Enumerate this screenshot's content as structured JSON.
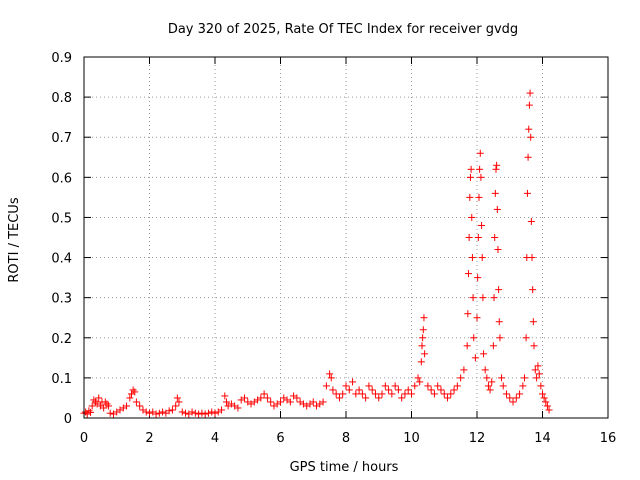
{
  "chart_data": {
    "type": "scatter",
    "title": "Day 320 of 2025, Rate Of TEC Index for receiver gvdg",
    "xlabel": "GPS time / hours",
    "ylabel": "ROTI / TECUs",
    "xlim": [
      0,
      16
    ],
    "ylim": [
      0,
      0.9
    ],
    "xticks": [
      "0",
      "2",
      "4",
      "6",
      "8",
      "10",
      "12",
      "14",
      "16"
    ],
    "yticks": [
      "0",
      "0.1",
      "0.2",
      "0.3",
      "0.4",
      "0.5",
      "0.6",
      "0.7",
      "0.8",
      "0.9"
    ],
    "grid": true,
    "marker": "+",
    "color": "#ff0000",
    "series": [
      {
        "points": [
          [
            0.0,
            0.012
          ],
          [
            0.05,
            0.015
          ],
          [
            0.1,
            0.01
          ],
          [
            0.15,
            0.018
          ],
          [
            0.2,
            0.014
          ],
          [
            0.25,
            0.03
          ],
          [
            0.3,
            0.045
          ],
          [
            0.35,
            0.04
          ],
          [
            0.4,
            0.035
          ],
          [
            0.45,
            0.05
          ],
          [
            0.5,
            0.03
          ],
          [
            0.55,
            0.04
          ],
          [
            0.6,
            0.025
          ],
          [
            0.65,
            0.04
          ],
          [
            0.7,
            0.035
          ],
          [
            0.75,
            0.03
          ],
          [
            0.8,
            0.012
          ],
          [
            0.9,
            0.01
          ],
          [
            1.0,
            0.015
          ],
          [
            1.1,
            0.02
          ],
          [
            1.2,
            0.025
          ],
          [
            1.3,
            0.03
          ],
          [
            1.4,
            0.05
          ],
          [
            1.45,
            0.06
          ],
          [
            1.5,
            0.07
          ],
          [
            1.55,
            0.065
          ],
          [
            1.6,
            0.04
          ],
          [
            1.7,
            0.03
          ],
          [
            1.8,
            0.02
          ],
          [
            1.9,
            0.015
          ],
          [
            2.0,
            0.012
          ],
          [
            2.1,
            0.015
          ],
          [
            2.2,
            0.01
          ],
          [
            2.3,
            0.012
          ],
          [
            2.4,
            0.015
          ],
          [
            2.5,
            0.012
          ],
          [
            2.6,
            0.018
          ],
          [
            2.7,
            0.02
          ],
          [
            2.8,
            0.03
          ],
          [
            2.85,
            0.05
          ],
          [
            2.9,
            0.04
          ],
          [
            3.0,
            0.015
          ],
          [
            3.1,
            0.012
          ],
          [
            3.2,
            0.01
          ],
          [
            3.3,
            0.015
          ],
          [
            3.4,
            0.012
          ],
          [
            3.5,
            0.01
          ],
          [
            3.6,
            0.012
          ],
          [
            3.7,
            0.01
          ],
          [
            3.8,
            0.012
          ],
          [
            3.9,
            0.015
          ],
          [
            4.0,
            0.012
          ],
          [
            4.1,
            0.015
          ],
          [
            4.2,
            0.02
          ],
          [
            4.3,
            0.055
          ],
          [
            4.35,
            0.04
          ],
          [
            4.4,
            0.03
          ],
          [
            4.5,
            0.035
          ],
          [
            4.6,
            0.03
          ],
          [
            4.7,
            0.025
          ],
          [
            4.8,
            0.045
          ],
          [
            4.9,
            0.05
          ],
          [
            5.0,
            0.04
          ],
          [
            5.1,
            0.035
          ],
          [
            5.2,
            0.04
          ],
          [
            5.3,
            0.045
          ],
          [
            5.4,
            0.05
          ],
          [
            5.5,
            0.06
          ],
          [
            5.6,
            0.05
          ],
          [
            5.7,
            0.04
          ],
          [
            5.8,
            0.03
          ],
          [
            5.9,
            0.035
          ],
          [
            6.0,
            0.04
          ],
          [
            6.1,
            0.05
          ],
          [
            6.2,
            0.045
          ],
          [
            6.3,
            0.04
          ],
          [
            6.4,
            0.055
          ],
          [
            6.5,
            0.05
          ],
          [
            6.6,
            0.04
          ],
          [
            6.7,
            0.035
          ],
          [
            6.8,
            0.03
          ],
          [
            6.9,
            0.035
          ],
          [
            7.0,
            0.04
          ],
          [
            7.1,
            0.03
          ],
          [
            7.2,
            0.035
          ],
          [
            7.3,
            0.04
          ],
          [
            7.4,
            0.08
          ],
          [
            7.5,
            0.11
          ],
          [
            7.55,
            0.1
          ],
          [
            7.6,
            0.07
          ],
          [
            7.7,
            0.06
          ],
          [
            7.8,
            0.05
          ],
          [
            7.9,
            0.06
          ],
          [
            8.0,
            0.08
          ],
          [
            8.1,
            0.07
          ],
          [
            8.2,
            0.09
          ],
          [
            8.3,
            0.06
          ],
          [
            8.4,
            0.07
          ],
          [
            8.5,
            0.06
          ],
          [
            8.6,
            0.05
          ],
          [
            8.7,
            0.08
          ],
          [
            8.8,
            0.07
          ],
          [
            8.9,
            0.06
          ],
          [
            9.0,
            0.05
          ],
          [
            9.1,
            0.06
          ],
          [
            9.2,
            0.08
          ],
          [
            9.3,
            0.07
          ],
          [
            9.4,
            0.06
          ],
          [
            9.5,
            0.08
          ],
          [
            9.6,
            0.07
          ],
          [
            9.7,
            0.05
          ],
          [
            9.8,
            0.06
          ],
          [
            9.9,
            0.07
          ],
          [
            10.0,
            0.06
          ],
          [
            10.1,
            0.08
          ],
          [
            10.2,
            0.1
          ],
          [
            10.25,
            0.09
          ],
          [
            10.3,
            0.14
          ],
          [
            10.32,
            0.18
          ],
          [
            10.34,
            0.2
          ],
          [
            10.36,
            0.22
          ],
          [
            10.38,
            0.25
          ],
          [
            10.4,
            0.16
          ],
          [
            10.5,
            0.08
          ],
          [
            10.6,
            0.07
          ],
          [
            10.7,
            0.06
          ],
          [
            10.8,
            0.08
          ],
          [
            10.9,
            0.07
          ],
          [
            11.0,
            0.06
          ],
          [
            11.1,
            0.05
          ],
          [
            11.2,
            0.06
          ],
          [
            11.3,
            0.07
          ],
          [
            11.4,
            0.08
          ],
          [
            11.5,
            0.1
          ],
          [
            11.6,
            0.12
          ],
          [
            11.7,
            0.18
          ],
          [
            11.72,
            0.26
          ],
          [
            11.74,
            0.36
          ],
          [
            11.76,
            0.45
          ],
          [
            11.78,
            0.55
          ],
          [
            11.8,
            0.6
          ],
          [
            11.82,
            0.62
          ],
          [
            11.84,
            0.5
          ],
          [
            11.86,
            0.4
          ],
          [
            11.88,
            0.3
          ],
          [
            11.9,
            0.2
          ],
          [
            11.95,
            0.15
          ],
          [
            12.0,
            0.25
          ],
          [
            12.02,
            0.35
          ],
          [
            12.04,
            0.45
          ],
          [
            12.06,
            0.55
          ],
          [
            12.08,
            0.62
          ],
          [
            12.1,
            0.66
          ],
          [
            12.12,
            0.6
          ],
          [
            12.14,
            0.48
          ],
          [
            12.16,
            0.4
          ],
          [
            12.18,
            0.3
          ],
          [
            12.2,
            0.16
          ],
          [
            12.25,
            0.12
          ],
          [
            12.3,
            0.1
          ],
          [
            12.35,
            0.08
          ],
          [
            12.4,
            0.07
          ],
          [
            12.45,
            0.09
          ],
          [
            12.5,
            0.18
          ],
          [
            12.52,
            0.3
          ],
          [
            12.54,
            0.45
          ],
          [
            12.56,
            0.56
          ],
          [
            12.58,
            0.62
          ],
          [
            12.6,
            0.63
          ],
          [
            12.62,
            0.52
          ],
          [
            12.64,
            0.42
          ],
          [
            12.66,
            0.32
          ],
          [
            12.68,
            0.24
          ],
          [
            12.7,
            0.2
          ],
          [
            12.75,
            0.1
          ],
          [
            12.8,
            0.08
          ],
          [
            12.9,
            0.06
          ],
          [
            13.0,
            0.05
          ],
          [
            13.1,
            0.04
          ],
          [
            13.2,
            0.05
          ],
          [
            13.3,
            0.06
          ],
          [
            13.4,
            0.08
          ],
          [
            13.45,
            0.1
          ],
          [
            13.5,
            0.2
          ],
          [
            13.52,
            0.4
          ],
          [
            13.54,
            0.56
          ],
          [
            13.56,
            0.65
          ],
          [
            13.58,
            0.72
          ],
          [
            13.6,
            0.78
          ],
          [
            13.62,
            0.81
          ],
          [
            13.64,
            0.7
          ],
          [
            13.66,
            0.49
          ],
          [
            13.68,
            0.4
          ],
          [
            13.7,
            0.32
          ],
          [
            13.72,
            0.24
          ],
          [
            13.74,
            0.18
          ],
          [
            13.78,
            0.12
          ],
          [
            13.82,
            0.1
          ],
          [
            13.86,
            0.13
          ],
          [
            13.9,
            0.11
          ],
          [
            13.95,
            0.08
          ],
          [
            14.0,
            0.06
          ],
          [
            14.05,
            0.05
          ],
          [
            14.1,
            0.04
          ],
          [
            14.15,
            0.03
          ],
          [
            14.2,
            0.02
          ]
        ]
      }
    ]
  }
}
